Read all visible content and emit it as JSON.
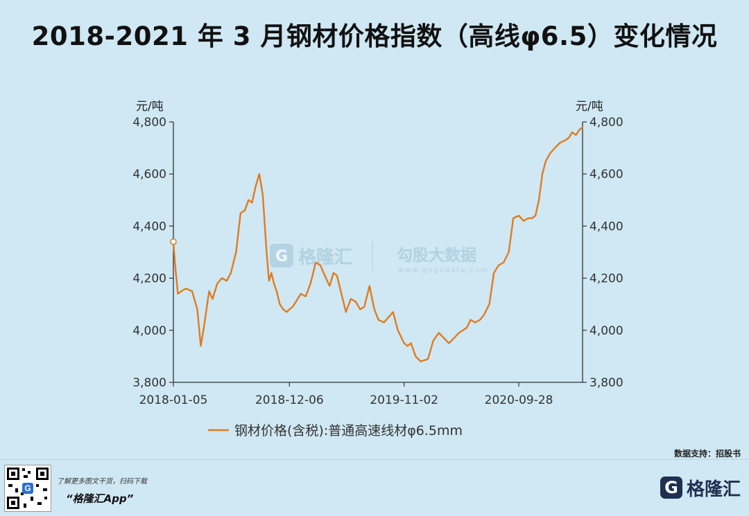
{
  "title": "2018-2021 年 3 月钢材价格指数（高线φ6.5）变化情况",
  "source": "数据支持：招股书",
  "footer": {
    "hint": "了解更多图文干货，扫码下载",
    "app": "“格隆汇App”",
    "brand": "格隆汇",
    "brand_mark": "G"
  },
  "watermark": {
    "left": "格隆汇",
    "right": "勾股大数据",
    "right_url": "www.gogudata.com"
  },
  "colors": {
    "background": "#cfe8f3",
    "series": "#e07b1f",
    "axis": "#333333",
    "watermark": "#9fc3d8"
  },
  "chart_data": {
    "type": "line",
    "title": "",
    "ylabel_left": "元/吨",
    "ylabel_right": "元/吨",
    "ylim": [
      3800,
      4800
    ],
    "yticks": [
      3800,
      4000,
      4200,
      4400,
      4600,
      4800
    ],
    "ytick_labels": [
      "3,800",
      "4,000",
      "4,200",
      "4,400",
      "4,600",
      "4,800"
    ],
    "xlim": [
      "2018-01-05",
      "2021-03-31"
    ],
    "xticks": [
      "2018-01-05",
      "2018-12-06",
      "2019-11-02",
      "2020-09-28"
    ],
    "legend": "top-bottom-center",
    "grid": false,
    "series": [
      {
        "name": "钢材价格(含税):普通高速线材φ6.5mm",
        "x": [
          "2018-01-05",
          "2018-01-10",
          "2018-01-18",
          "2018-01-28",
          "2018-02-10",
          "2018-02-28",
          "2018-03-15",
          "2018-03-25",
          "2018-04-04",
          "2018-04-18",
          "2018-04-28",
          "2018-05-12",
          "2018-05-25",
          "2018-06-08",
          "2018-06-20",
          "2018-07-05",
          "2018-07-18",
          "2018-07-30",
          "2018-08-10",
          "2018-08-20",
          "2018-08-30",
          "2018-09-10",
          "2018-09-20",
          "2018-10-01",
          "2018-10-08",
          "2018-10-15",
          "2018-10-22",
          "2018-10-30",
          "2018-11-08",
          "2018-11-18",
          "2018-11-28",
          "2018-12-06",
          "2018-12-15",
          "2018-12-25",
          "2019-01-08",
          "2019-01-22",
          "2019-02-05",
          "2019-02-20",
          "2019-03-05",
          "2019-03-18",
          "2019-04-01",
          "2019-04-12",
          "2019-04-22",
          "2019-05-05",
          "2019-05-18",
          "2019-06-01",
          "2019-06-15",
          "2019-06-28",
          "2019-07-10",
          "2019-07-25",
          "2019-08-08",
          "2019-08-20",
          "2019-09-05",
          "2019-09-18",
          "2019-10-01",
          "2019-10-15",
          "2019-11-02",
          "2019-11-12",
          "2019-11-22",
          "2019-12-05",
          "2019-12-20",
          "2020-01-10",
          "2020-01-25",
          "2020-02-10",
          "2020-02-25",
          "2020-03-10",
          "2020-03-25",
          "2020-04-08",
          "2020-04-20",
          "2020-05-01",
          "2020-05-12",
          "2020-05-25",
          "2020-06-08",
          "2020-06-20",
          "2020-07-05",
          "2020-07-18",
          "2020-08-01",
          "2020-08-15",
          "2020-08-30",
          "2020-09-12",
          "2020-09-28",
          "2020-10-12",
          "2020-10-25",
          "2020-11-05",
          "2020-11-15",
          "2020-11-25",
          "2020-12-05",
          "2020-12-15",
          "2020-12-28",
          "2021-01-10",
          "2021-01-25",
          "2021-02-10",
          "2021-02-20",
          "2021-03-01",
          "2021-03-12",
          "2021-03-22",
          "2021-03-31"
        ],
        "values": [
          4340,
          4250,
          4140,
          4150,
          4160,
          4150,
          4080,
          3940,
          4020,
          4150,
          4120,
          4180,
          4200,
          4190,
          4220,
          4300,
          4450,
          4460,
          4500,
          4490,
          4550,
          4600,
          4520,
          4300,
          4190,
          4220,
          4180,
          4150,
          4100,
          4080,
          4070,
          4080,
          4090,
          4110,
          4140,
          4130,
          4180,
          4260,
          4250,
          4210,
          4170,
          4220,
          4210,
          4140,
          4070,
          4120,
          4110,
          4080,
          4090,
          4170,
          4080,
          4040,
          4030,
          4050,
          4070,
          4000,
          3950,
          3940,
          3950,
          3900,
          3880,
          3890,
          3960,
          3990,
          3970,
          3950,
          3970,
          3990,
          4000,
          4010,
          4040,
          4030,
          4040,
          4060,
          4100,
          4220,
          4250,
          4260,
          4300,
          4430,
          4440,
          4420,
          4430,
          4430,
          4440,
          4500,
          4600,
          4650,
          4680,
          4700,
          4720,
          4730,
          4740,
          4760,
          4750,
          4770,
          4780
        ]
      }
    ],
    "start_marker": true
  }
}
